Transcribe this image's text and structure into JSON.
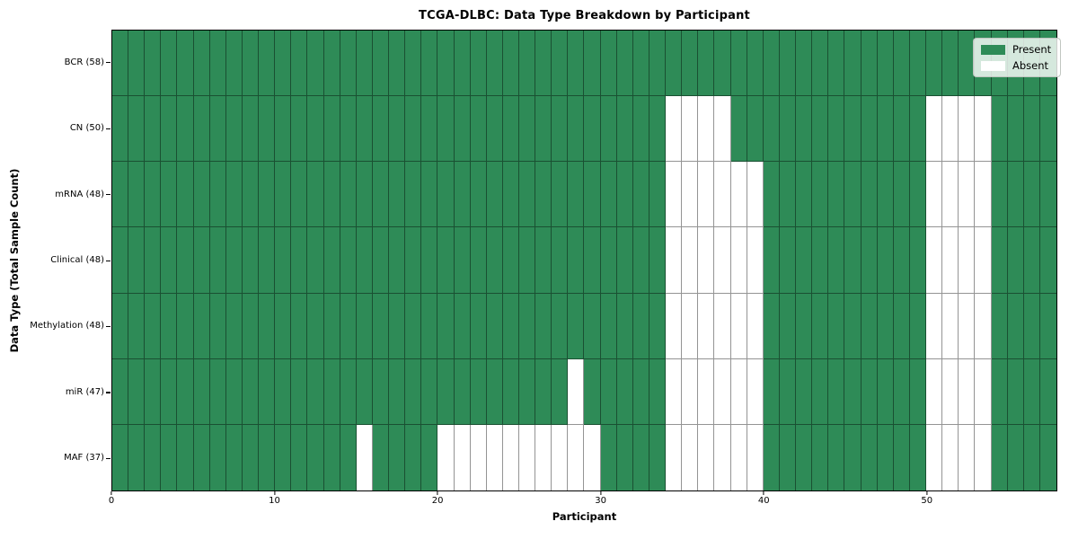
{
  "figure": {
    "title": "TCGA-DLBC: Data Type Breakdown by Participant",
    "xlabel": "Participant",
    "ylabel": "Data Type (Total Sample Count)"
  },
  "chart_data": {
    "type": "heatmap",
    "title": "TCGA-DLBC: Data Type Breakdown by Participant",
    "xlabel": "Participant",
    "ylabel": "Data Type (Total Sample Count)",
    "n_participants": 58,
    "x_range": [
      0,
      58
    ],
    "x_ticks": [
      0,
      10,
      20,
      30,
      40,
      50
    ],
    "cell_states": [
      "Present",
      "Absent"
    ],
    "rows": [
      {
        "label": "BCR (58)",
        "total_samples": 58,
        "absent_participants": []
      },
      {
        "label": "CN (50)",
        "total_samples": 50,
        "absent_participants": [
          34,
          35,
          36,
          37,
          50,
          51,
          52,
          53
        ]
      },
      {
        "label": "mRNA (48)",
        "total_samples": 48,
        "absent_participants": [
          34,
          35,
          36,
          37,
          38,
          39,
          50,
          51,
          52,
          53
        ]
      },
      {
        "label": "Clinical (48)",
        "total_samples": 48,
        "absent_participants": [
          34,
          35,
          36,
          37,
          38,
          39,
          50,
          51,
          52,
          53
        ]
      },
      {
        "label": "Methylation (48)",
        "total_samples": 48,
        "absent_participants": [
          34,
          35,
          36,
          37,
          38,
          39,
          50,
          51,
          52,
          53
        ]
      },
      {
        "label": "miR (47)",
        "total_samples": 47,
        "absent_participants": [
          28,
          34,
          35,
          36,
          37,
          38,
          39,
          50,
          51,
          52,
          53
        ]
      },
      {
        "label": "MAF (37)",
        "total_samples": 37,
        "absent_participants": [
          15,
          20,
          21,
          22,
          23,
          24,
          25,
          26,
          27,
          28,
          29,
          34,
          35,
          36,
          37,
          38,
          39,
          50,
          51,
          52,
          53
        ]
      }
    ],
    "legend": {
      "position": "upper right",
      "entries": [
        {
          "label": "Present",
          "color": "#2e8b57"
        },
        {
          "label": "Absent",
          "color": "#ffffff"
        }
      ]
    },
    "colors": {
      "present": "#2e8b57",
      "absent": "#ffffff",
      "gridline": "rgba(0,0,0,0.42)",
      "plot_border": "#000000"
    },
    "grid": true
  }
}
